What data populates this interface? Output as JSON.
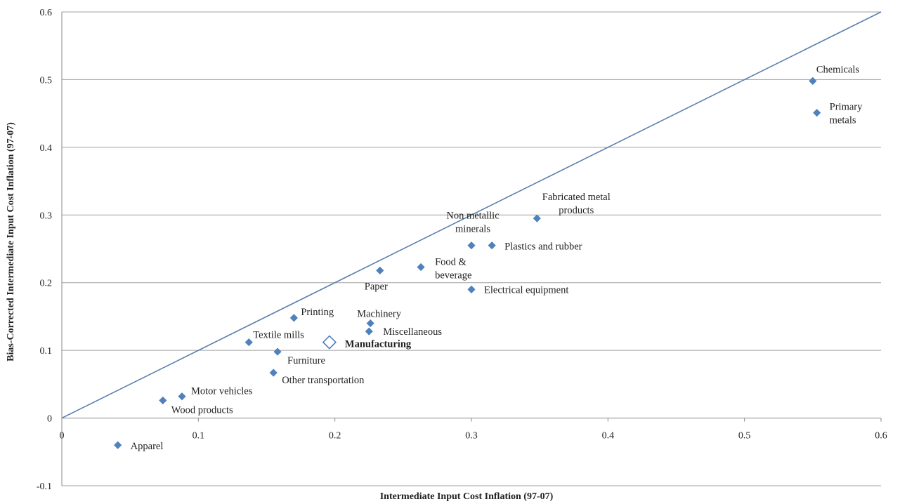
{
  "chart_data": {
    "type": "scatter",
    "title": "",
    "xlabel": "Intermediate Input Cost Inflation (97-07)",
    "ylabel": "Bias-Corrected Intermediate Input Cost Inflation (97-07)",
    "xlim": [
      0,
      0.6
    ],
    "ylim": [
      -0.1,
      0.6
    ],
    "x_ticks": [
      "0",
      "0.1",
      "0.2",
      "0.3",
      "0.4",
      "0.5",
      "0.6"
    ],
    "y_ticks": [
      "-0.1",
      "0",
      "0.1",
      "0.2",
      "0.3",
      "0.4",
      "0.5",
      "0.6"
    ],
    "grid": "horizontal",
    "colors": {
      "marker": "#4f81bd",
      "line": "#5b7fb0",
      "grid": "#a0a0a0"
    },
    "reference_line": {
      "type": "45-degree",
      "from": [
        0,
        0
      ],
      "to": [
        0.6,
        0.6
      ]
    },
    "points": [
      {
        "label": "Chemicals",
        "x": 0.55,
        "y": 0.498
      },
      {
        "label": "Primary metals",
        "lines": [
          "Primary",
          "metals"
        ],
        "x": 0.553,
        "y": 0.451
      },
      {
        "label": "Fabricated metal products",
        "lines": [
          "Fabricated metal",
          "products"
        ],
        "x": 0.348,
        "y": 0.295
      },
      {
        "label": "Non metallic minerals",
        "lines": [
          "Non metallic",
          "minerals"
        ],
        "x": 0.3,
        "y": 0.255
      },
      {
        "label": "Plastics and rubber",
        "x": 0.315,
        "y": 0.255
      },
      {
        "label": "Food & beverage",
        "lines": [
          "Food &",
          "beverage"
        ],
        "x": 0.263,
        "y": 0.223
      },
      {
        "label": "Paper",
        "x": 0.233,
        "y": 0.218
      },
      {
        "label": "Electrical equipment",
        "x": 0.3,
        "y": 0.19
      },
      {
        "label": "Printing",
        "x": 0.17,
        "y": 0.148
      },
      {
        "label": "Machinery",
        "x": 0.226,
        "y": 0.14
      },
      {
        "label": "Miscellaneous",
        "x": 0.225,
        "y": 0.128
      },
      {
        "label": "Textile mills",
        "x": 0.137,
        "y": 0.112
      },
      {
        "label": "Manufacturing",
        "x": 0.196,
        "y": 0.112,
        "marker": "hollow-diamond",
        "bold": true
      },
      {
        "label": "Furniture",
        "x": 0.158,
        "y": 0.098
      },
      {
        "label": "Other transportation",
        "x": 0.155,
        "y": 0.067
      },
      {
        "label": "Motor vehicles",
        "x": 0.088,
        "y": 0.032
      },
      {
        "label": "Wood products",
        "x": 0.074,
        "y": 0.026
      },
      {
        "label": "Apparel",
        "x": 0.041,
        "y": -0.04
      }
    ]
  }
}
